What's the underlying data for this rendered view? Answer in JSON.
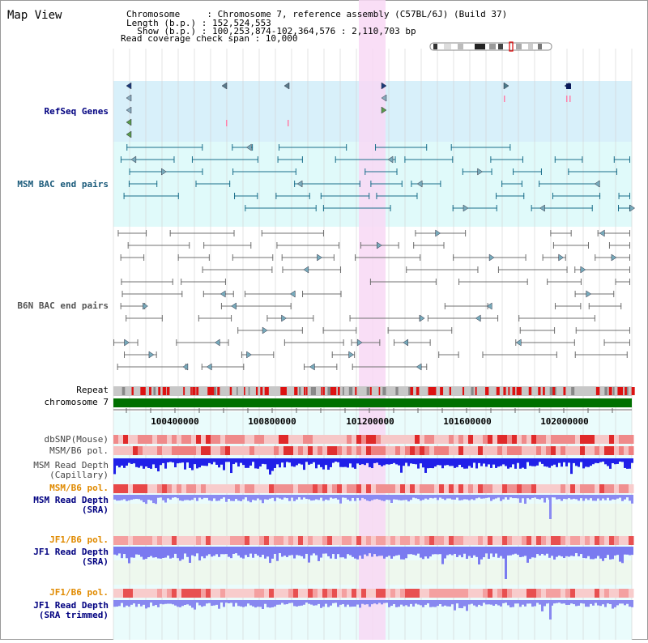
{
  "header": {
    "title": "Map View",
    "info_lines": [
      "Chromosome     : Chromosome 7, reference assembly (C57BL/6J) (Build 37)",
      "Length (b.p.) : 152,524,553",
      "  Show (b.p.) : 100,253,874-102,364,576 : 2,110,703 bp",
      "Read coverage check span : 10,000"
    ]
  },
  "tracks": {
    "refseq": "RefSeq Genes",
    "msm_bac": "MSM BAC end pairs",
    "b6n_bac": "B6N BAC end pairs",
    "repeat": "Repeat",
    "chromosome": "chromosome 7",
    "dbsnp": "dbSNP(Mouse)",
    "msm_b6_pol_1": "MSM/B6 pol.",
    "msm_depth_cap_1": "MSM Read Depth",
    "msm_depth_cap_2": "(Capillary)",
    "msm_b6_pol_2": "MSM/B6 pol.",
    "msm_depth_sra_1": "MSM Read Depth",
    "msm_depth_sra_2": "(SRA)",
    "jf1_b6_pol_1": "JF1/B6 pol.",
    "jf1_depth_sra_1": "JF1 Read Depth",
    "jf1_depth_sra_2": "(SRA)",
    "jf1_b6_pol_2": "JF1/B6 pol.",
    "jf1_depth_trim_1": "JF1 Read Depth",
    "jf1_depth_trim_2": "(SRA trimmed)"
  },
  "ruler": {
    "ticks": [
      "100400000",
      "100800000",
      "101200000",
      "101600000",
      "102000000"
    ]
  },
  "colors": {
    "refseq_bg": "#d8f0fa",
    "msm_bg": "#e0fafa",
    "grid_bg": "#eafcfc",
    "highlight": "#f8d8f4",
    "label_blue": "#000080",
    "label_orange": "#e08a00",
    "msm_feature": "#1a6e8a",
    "b6n_feature": "#606060",
    "chromosome_bar": "#007000",
    "depth_capillary": "#2020e8",
    "depth_sra": "#8080f0"
  }
}
